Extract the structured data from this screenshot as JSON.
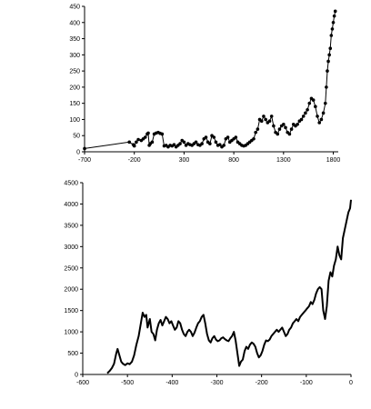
{
  "chart_data": [
    {
      "type": "scatter",
      "title": "",
      "xlabel": "",
      "ylabel": "",
      "xlim": [
        -700,
        1850
      ],
      "ylim": [
        0,
        450
      ],
      "xticks": [
        -700,
        -200,
        300,
        800,
        1300,
        1800
      ],
      "yticks": [
        0,
        50,
        100,
        150,
        200,
        250,
        300,
        350,
        400,
        450
      ],
      "grid": false,
      "legend": "none",
      "series": [
        {
          "style": "line-with-markers",
          "color": "#000000",
          "x": [
            -700,
            -250,
            -210,
            -200,
            -180,
            -160,
            -130,
            -110,
            -90,
            -70,
            -60,
            -50,
            -40,
            -20,
            0,
            20,
            40,
            60,
            80,
            100,
            120,
            140,
            160,
            180,
            200,
            220,
            240,
            260,
            280,
            300,
            320,
            340,
            360,
            380,
            400,
            420,
            440,
            460,
            480,
            500,
            520,
            540,
            560,
            580,
            600,
            620,
            640,
            660,
            680,
            700,
            720,
            740,
            760,
            780,
            800,
            820,
            840,
            860,
            880,
            900,
            920,
            940,
            960,
            980,
            1000,
            1020,
            1040,
            1060,
            1080,
            1100,
            1120,
            1140,
            1160,
            1180,
            1200,
            1220,
            1240,
            1260,
            1280,
            1300,
            1320,
            1340,
            1360,
            1380,
            1400,
            1420,
            1440,
            1460,
            1480,
            1500,
            1520,
            1540,
            1560,
            1580,
            1600,
            1620,
            1640,
            1660,
            1680,
            1700,
            1720,
            1730,
            1740,
            1750,
            1760,
            1770,
            1780,
            1790,
            1800,
            1810,
            1820
          ],
          "y": [
            10,
            30,
            22,
            18,
            30,
            38,
            35,
            40,
            45,
            55,
            58,
            20,
            25,
            30,
            55,
            58,
            60,
            57,
            55,
            18,
            20,
            15,
            20,
            18,
            22,
            15,
            20,
            25,
            35,
            30,
            20,
            25,
            22,
            20,
            25,
            30,
            22,
            20,
            25,
            40,
            45,
            30,
            25,
            50,
            45,
            30,
            20,
            22,
            15,
            20,
            40,
            45,
            30,
            35,
            40,
            45,
            30,
            25,
            20,
            18,
            20,
            25,
            30,
            35,
            40,
            60,
            70,
            100,
            95,
            110,
            100,
            90,
            95,
            110,
            80,
            60,
            55,
            70,
            80,
            85,
            75,
            60,
            55,
            70,
            85,
            80,
            85,
            95,
            100,
            110,
            120,
            130,
            150,
            165,
            160,
            140,
            110,
            90,
            100,
            120,
            150,
            200,
            250,
            280,
            300,
            320,
            360,
            380,
            400,
            420,
            435
          ]
        }
      ]
    },
    {
      "type": "line",
      "title": "",
      "xlabel": "",
      "ylabel": "",
      "xlim": [
        -600,
        0
      ],
      "ylim": [
        0,
        4500
      ],
      "xticks": [
        -600,
        -500,
        -400,
        -300,
        -200,
        -100,
        0
      ],
      "yticks": [
        0,
        500,
        1000,
        1500,
        2000,
        2500,
        3000,
        3500,
        4000,
        4500
      ],
      "grid": false,
      "legend": "none",
      "series": [
        {
          "style": "line",
          "color": "#000000",
          "x": [
            -545,
            -540,
            -535,
            -530,
            -525,
            -522,
            -518,
            -514,
            -510,
            -505,
            -500,
            -495,
            -490,
            -485,
            -480,
            -475,
            -470,
            -466,
            -462,
            -458,
            -455,
            -450,
            -446,
            -442,
            -438,
            -434,
            -430,
            -426,
            -422,
            -418,
            -414,
            -410,
            -406,
            -402,
            -398,
            -394,
            -390,
            -386,
            -382,
            -378,
            -374,
            -370,
            -366,
            -362,
            -358,
            -354,
            -350,
            -346,
            -342,
            -338,
            -334,
            -330,
            -326,
            -322,
            -318,
            -314,
            -310,
            -306,
            -302,
            -298,
            -294,
            -290,
            -286,
            -282,
            -278,
            -274,
            -270,
            -266,
            -262,
            -258,
            -254,
            -250,
            -246,
            -242,
            -238,
            -234,
            -230,
            -226,
            -222,
            -218,
            -214,
            -210,
            -206,
            -202,
            -198,
            -194,
            -190,
            -186,
            -182,
            -178,
            -174,
            -170,
            -166,
            -162,
            -158,
            -154,
            -150,
            -146,
            -142,
            -138,
            -134,
            -130,
            -126,
            -122,
            -118,
            -114,
            -110,
            -106,
            -102,
            -98,
            -94,
            -90,
            -86,
            -82,
            -78,
            -74,
            -70,
            -66,
            -62,
            -58,
            -54,
            -50,
            -46,
            -42,
            -38,
            -34,
            -30,
            -26,
            -22,
            -18,
            -14,
            -10,
            -6,
            -2,
            0
          ],
          "y": [
            30,
            80,
            150,
            250,
            500,
            600,
            450,
            300,
            250,
            220,
            260,
            240,
            300,
            450,
            700,
            900,
            1200,
            1450,
            1350,
            1400,
            1100,
            1300,
            1000,
            950,
            800,
            1050,
            1200,
            1280,
            1150,
            1250,
            1350,
            1300,
            1200,
            1250,
            1150,
            1050,
            1100,
            1250,
            1200,
            1050,
            950,
            900,
            1000,
            1050,
            1000,
            900,
            980,
            1100,
            1200,
            1250,
            1350,
            1400,
            1200,
            950,
            800,
            750,
            850,
            900,
            820,
            780,
            800,
            850,
            870,
            830,
            800,
            780,
            850,
            900,
            1000,
            800,
            500,
            200,
            300,
            350,
            550,
            650,
            600,
            700,
            750,
            720,
            650,
            500,
            400,
            450,
            550,
            700,
            800,
            780,
            820,
            900,
            950,
            1000,
            1050,
            1000,
            1050,
            1100,
            1000,
            900,
            950,
            1050,
            1100,
            1200,
            1250,
            1300,
            1250,
            1350,
            1400,
            1450,
            1500,
            1550,
            1600,
            1700,
            1650,
            1750,
            1900,
            2000,
            2050,
            2000,
            1500,
            1300,
            1600,
            2200,
            2400,
            2300,
            2550,
            2700,
            3000,
            2800,
            2700,
            3200,
            3400,
            3600,
            3800,
            3900,
            4100
          ]
        }
      ]
    }
  ]
}
